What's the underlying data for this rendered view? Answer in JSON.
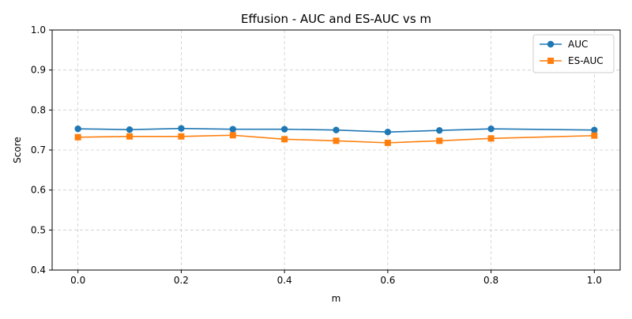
{
  "chart_data": {
    "type": "line",
    "title": "Effusion - AUC and ES-AUC vs m",
    "xlabel": "m",
    "ylabel": "Score",
    "x": [
      0.0,
      0.1,
      0.2,
      0.3,
      0.4,
      0.5,
      0.6,
      0.7,
      0.8,
      1.0
    ],
    "xlim": [
      -0.05,
      1.05
    ],
    "ylim": [
      0.4,
      1.0
    ],
    "xticks": [
      "0.0",
      "0.2",
      "0.4",
      "0.6",
      "0.8",
      "1.0"
    ],
    "yticks": [
      "0.4",
      "0.5",
      "0.6",
      "0.7",
      "0.8",
      "0.9",
      "1.0"
    ],
    "grid": true,
    "legend_position": "top-right",
    "series": [
      {
        "name": "AUC",
        "color": "#1f77b4",
        "marker": "circle",
        "values": [
          0.753,
          0.751,
          0.754,
          0.752,
          0.752,
          0.75,
          0.745,
          0.749,
          0.753,
          0.75
        ]
      },
      {
        "name": "ES-AUC",
        "color": "#ff7f0e",
        "marker": "square",
        "values": [
          0.732,
          0.734,
          0.734,
          0.737,
          0.727,
          0.723,
          0.718,
          0.723,
          0.729,
          0.736
        ]
      }
    ]
  }
}
